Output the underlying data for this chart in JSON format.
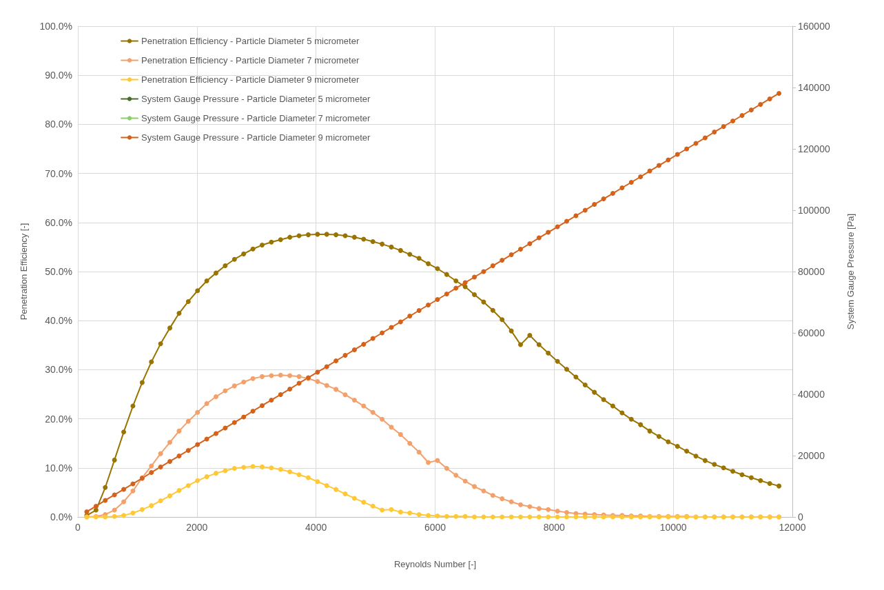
{
  "chart_data": {
    "type": "line",
    "xlabel": "Reynolds Number [-]",
    "ylabel": "Penetration Efficiency [-]",
    "y2label": "System Gauge Pressure [Pa]",
    "x": [
      150,
      305,
      460,
      615,
      770,
      925,
      1080,
      1235,
      1390,
      1545,
      1700,
      1855,
      2010,
      2165,
      2320,
      2475,
      2630,
      2785,
      2940,
      3095,
      3250,
      3405,
      3560,
      3715,
      3870,
      4025,
      4180,
      4335,
      4490,
      4645,
      4800,
      4955,
      5110,
      5265,
      5420,
      5575,
      5730,
      5885,
      6040,
      6195,
      6350,
      6505,
      6660,
      6815,
      6970,
      7125,
      7280,
      7435,
      7590,
      7745,
      7900,
      8055,
      8210,
      8365,
      8520,
      8675,
      8830,
      8985,
      9140,
      9295,
      9450,
      9605,
      9760,
      9915,
      10070,
      10225,
      10380,
      10535,
      10690,
      10845,
      11000,
      11155,
      11310,
      11465,
      11620,
      11775
    ],
    "xlim": [
      0,
      12000
    ],
    "xticks": [
      0,
      2000,
      4000,
      6000,
      8000,
      10000,
      12000
    ],
    "ylim": [
      0,
      100
    ],
    "yticks": [
      {
        "value": 0,
        "label": "0.0%"
      },
      {
        "value": 10,
        "label": "10.0%"
      },
      {
        "value": 20,
        "label": "20.0%"
      },
      {
        "value": 30,
        "label": "30.0%"
      },
      {
        "value": 40,
        "label": "40.0%"
      },
      {
        "value": 50,
        "label": "50.0%"
      },
      {
        "value": 60,
        "label": "60.0%"
      },
      {
        "value": 70,
        "label": "70.0%"
      },
      {
        "value": 80,
        "label": "80.0%"
      },
      {
        "value": 90,
        "label": "90.0%"
      },
      {
        "value": 100,
        "label": "100.0%"
      }
    ],
    "y2lim": [
      0,
      160000
    ],
    "y2ticks": [
      0,
      20000,
      40000,
      60000,
      80000,
      100000,
      120000,
      140000,
      160000
    ],
    "grid": true,
    "legend": "top left",
    "marker": "circle",
    "line_style": "solid",
    "series": [
      {
        "name": "Penetration Efficiency - Particle Diameter 5 micrometer",
        "color": "#9a7400",
        "values": [
          0.3,
          1.4,
          6.0,
          11.6,
          17.3,
          22.6,
          27.4,
          31.6,
          35.3,
          38.5,
          41.5,
          43.9,
          46.1,
          48.1,
          49.7,
          51.2,
          52.5,
          53.6,
          54.6,
          55.4,
          56.0,
          56.5,
          57.0,
          57.3,
          57.5,
          57.6,
          57.6,
          57.5,
          57.3,
          57.0,
          56.6,
          56.1,
          55.6,
          55.0,
          54.3,
          53.5,
          52.7,
          51.6,
          50.6,
          49.4,
          48.1,
          46.9,
          45.3,
          43.8,
          42.1,
          40.2,
          37.9,
          35.1,
          37.0,
          35.1,
          33.4,
          31.7,
          30.1,
          28.5,
          26.9,
          25.4,
          23.9,
          22.6,
          21.2,
          19.9,
          18.8,
          17.5,
          16.4,
          15.3,
          14.4,
          13.4,
          12.4,
          11.5,
          10.7,
          10.0,
          9.3,
          8.6,
          8.0,
          7.4,
          6.8,
          6.3
        ]
      },
      {
        "name": "Penetration Efficiency - Particle Diameter 7 micrometer",
        "color": "#f4a06a",
        "values": [
          0.0,
          0.1,
          0.5,
          1.4,
          3.1,
          5.3,
          8.0,
          10.4,
          12.9,
          15.2,
          17.5,
          19.5,
          21.3,
          23.1,
          24.5,
          25.7,
          26.7,
          27.5,
          28.2,
          28.6,
          28.8,
          28.9,
          28.8,
          28.6,
          28.2,
          27.6,
          26.8,
          26.0,
          24.9,
          23.8,
          22.6,
          21.3,
          19.9,
          18.3,
          16.8,
          15.0,
          13.2,
          11.1,
          11.5,
          9.9,
          8.5,
          7.3,
          6.2,
          5.3,
          4.4,
          3.7,
          3.1,
          2.5,
          2.1,
          1.7,
          1.5,
          1.2,
          0.9,
          0.7,
          0.6,
          0.5,
          0.4,
          0.3,
          0.3,
          0.2,
          0.2,
          0.1,
          0.1,
          0.1,
          0.1,
          0.1,
          0.0,
          0.0,
          0.0,
          0.0,
          0.0,
          0.0,
          0.0,
          0.0,
          0.0,
          0.0
        ]
      },
      {
        "name": "Penetration Efficiency - Particle Diameter 9 micrometer",
        "color": "#ffc836",
        "values": [
          0.0,
          0.0,
          0.0,
          0.1,
          0.3,
          0.8,
          1.5,
          2.3,
          3.3,
          4.3,
          5.4,
          6.4,
          7.4,
          8.2,
          8.9,
          9.4,
          9.9,
          10.1,
          10.3,
          10.2,
          10.0,
          9.7,
          9.2,
          8.6,
          8.0,
          7.2,
          6.4,
          5.6,
          4.7,
          3.8,
          3.0,
          2.2,
          1.4,
          1.5,
          1.0,
          0.8,
          0.5,
          0.3,
          0.2,
          0.1,
          0.1,
          0.1,
          0.0,
          0.0,
          0.0,
          0.0,
          0.0,
          0.0,
          0.0,
          0.0,
          0.0,
          0.0,
          0.0,
          0.0,
          0.0,
          0.0,
          0.0,
          0.0,
          0.0,
          0.0,
          0.0,
          0.0,
          0.0,
          0.0,
          0.0,
          0.0,
          0.0,
          0.0,
          0.0,
          0.0,
          0.0,
          0.0,
          0.0,
          0.0,
          0.0,
          0.0
        ]
      },
      {
        "name": "System Gauge Pressure - Particle Diameter 5 micrometer",
        "color": "#4a6e2a",
        "axis": "y2",
        "values": [
          null,
          null,
          null,
          null,
          null,
          null,
          null,
          null,
          null,
          null,
          null,
          null,
          null,
          null,
          null,
          null,
          null,
          null,
          null,
          null,
          null,
          null,
          null,
          null,
          null,
          null,
          null,
          null,
          null,
          null,
          null,
          null,
          null,
          null,
          null,
          null,
          null,
          null,
          null,
          null,
          null,
          null,
          null,
          null,
          null,
          null,
          null,
          null,
          null,
          null,
          null,
          null,
          null,
          null,
          null,
          null,
          null,
          null,
          null,
          null,
          null,
          null,
          null,
          null,
          null,
          null,
          null,
          null,
          null,
          null,
          null,
          null,
          null,
          null,
          null,
          null
        ]
      },
      {
        "name": "System Gauge Pressure - Particle Diameter 7 micrometer",
        "color": "#8ccf6a",
        "axis": "y2",
        "values": [
          null,
          null,
          null,
          null,
          null,
          null,
          null,
          null,
          null,
          null,
          null,
          null,
          null,
          null,
          null,
          null,
          null,
          null,
          null,
          null,
          null,
          null,
          null,
          null,
          null,
          null,
          null,
          null,
          null,
          null,
          null,
          null,
          null,
          null,
          null,
          null,
          null,
          null,
          null,
          null,
          null,
          null,
          null,
          null,
          null,
          null,
          null,
          null,
          null,
          null,
          null,
          null,
          null,
          null,
          null,
          null,
          null,
          null,
          null,
          null,
          null,
          null,
          null,
          null,
          null,
          null,
          null,
          null,
          null,
          null,
          null,
          null,
          null,
          null,
          null,
          null
        ]
      },
      {
        "name": "System Gauge Pressure - Particle Diameter 9 micrometer",
        "color": "#d4621a",
        "axis": "y2",
        "values": [
          1700,
          3500,
          5400,
          7200,
          9000,
          10800,
          12600,
          14500,
          16300,
          18100,
          19900,
          21700,
          23600,
          25400,
          27200,
          29000,
          30800,
          32600,
          34500,
          36300,
          38100,
          39900,
          41700,
          43600,
          45400,
          47200,
          49000,
          50900,
          52700,
          54500,
          56300,
          58200,
          60000,
          61800,
          63600,
          65500,
          67300,
          69100,
          70900,
          72700,
          74600,
          76400,
          78200,
          80000,
          81900,
          83700,
          85500,
          87300,
          89100,
          91000,
          92800,
          94600,
          96400,
          98200,
          100000,
          101900,
          103700,
          105500,
          107300,
          109100,
          110900,
          112800,
          114600,
          116400,
          118200,
          120000,
          121800,
          123600,
          125500,
          127300,
          129100,
          130900,
          132700,
          134500,
          136300,
          138100
        ]
      }
    ]
  }
}
